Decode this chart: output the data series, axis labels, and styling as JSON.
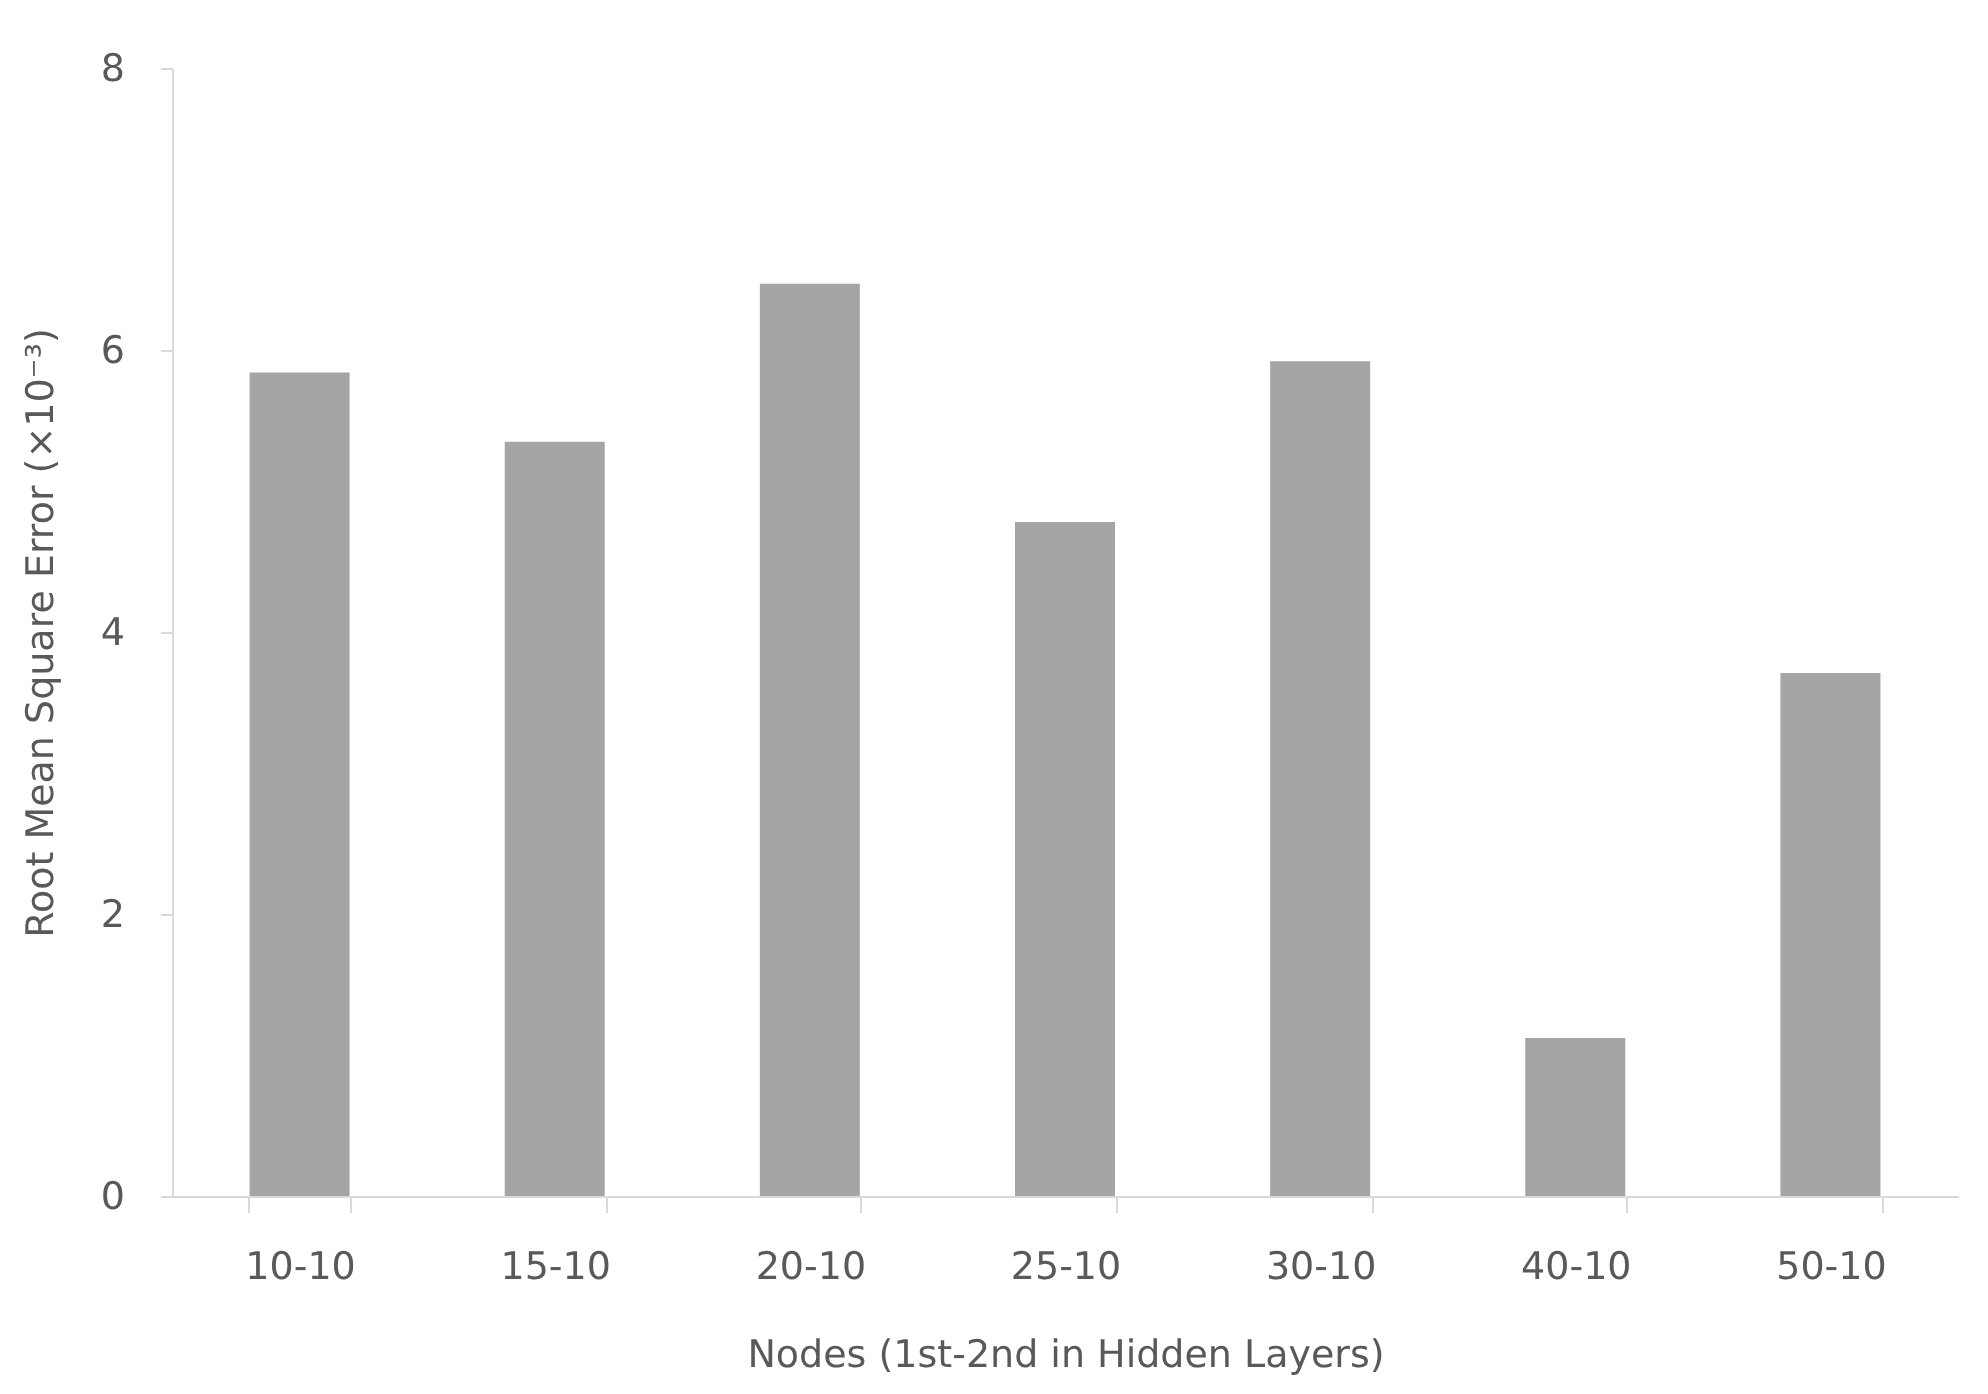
{
  "chart_data": {
    "type": "bar",
    "xlabel": "Nodes (1st-2nd in Hidden Layers)",
    "ylabel": "Root Mean Square Error (×10⁻³)",
    "categories": [
      "10-10",
      "15-10",
      "20-10",
      "25-10",
      "30-10",
      "40-10",
      "50-10"
    ],
    "values": [
      5.84,
      5.35,
      6.47,
      4.78,
      5.92,
      1.12,
      3.71
    ],
    "color": "#a5a5a5",
    "ylim": [
      0,
      8
    ],
    "yticks": [
      0,
      2,
      4,
      6,
      8
    ],
    "grid": false
  }
}
